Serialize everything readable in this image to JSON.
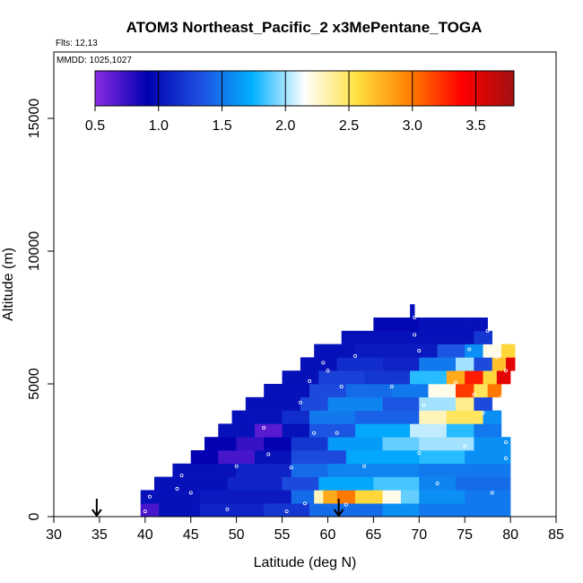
{
  "chart_data": {
    "type": "heatmap",
    "title": "ATOM3 Northeast_Pacific_2 x3MePentane_TOGA",
    "flights_note": "Flts: 12,13",
    "mmdd_note": "MMDD: 1025,1027",
    "xlabel": "Latitude (deg N)",
    "ylabel": "Altitude (m)",
    "xlim": [
      30,
      85
    ],
    "ylim": [
      0,
      17500
    ],
    "x_ticks": [
      30,
      35,
      40,
      45,
      50,
      55,
      60,
      65,
      70,
      75,
      80,
      85
    ],
    "y_ticks": [
      0,
      5000,
      10000,
      15000
    ],
    "colorbar": {
      "range": [
        0.5,
        3.8
      ],
      "ticks": [
        0.5,
        1.0,
        1.5,
        2.0,
        2.5,
        3.0,
        3.5
      ],
      "tick_labels": [
        "0.5",
        "1.0",
        "1.5",
        "2.0",
        "2.5",
        "3.0",
        "3.5"
      ],
      "colors": [
        "#8a2be2",
        "#0000b0",
        "#1e4fe0",
        "#00b0ff",
        "#ffffff",
        "#ffe040",
        "#ff8000",
        "#ff0000",
        "#a01010"
      ]
    },
    "bands": [
      {
        "alt_min": 0,
        "alt_max": 500,
        "segments": [
          [
            39.5,
            41.5,
            0.7
          ],
          [
            41.5,
            46,
            1.0
          ],
          [
            46,
            53,
            1.1
          ],
          [
            53,
            58,
            1.2
          ],
          [
            58,
            66,
            1.45
          ],
          [
            66,
            70,
            1.6
          ],
          [
            70,
            80,
            1.5
          ]
        ]
      },
      {
        "alt_min": 500,
        "alt_max": 1000,
        "segments": [
          [
            39.5,
            46,
            1.0
          ],
          [
            46,
            56,
            1.05
          ],
          [
            56,
            58.5,
            1.45
          ],
          [
            58.5,
            59.5,
            2.3
          ],
          [
            59.5,
            61,
            2.8
          ],
          [
            61,
            63,
            3.0
          ],
          [
            63,
            66,
            2.6
          ],
          [
            66,
            68,
            2.2
          ],
          [
            68,
            70,
            1.9
          ],
          [
            70,
            75,
            1.6
          ],
          [
            75,
            80,
            1.5
          ]
        ]
      },
      {
        "alt_min": 1000,
        "alt_max": 1500,
        "segments": [
          [
            41,
            49,
            1.0
          ],
          [
            49,
            55,
            1.1
          ],
          [
            55,
            59,
            1.3
          ],
          [
            59,
            65,
            1.7
          ],
          [
            65,
            70,
            1.85
          ],
          [
            70,
            74,
            1.55
          ],
          [
            74,
            80,
            1.45
          ]
        ]
      },
      {
        "alt_min": 1500,
        "alt_max": 2000,
        "segments": [
          [
            43,
            50,
            1.0
          ],
          [
            50,
            56,
            1.1
          ],
          [
            56,
            60,
            1.45
          ],
          [
            60,
            70,
            1.55
          ],
          [
            70,
            80,
            1.5
          ]
        ]
      },
      {
        "alt_min": 2000,
        "alt_max": 2500,
        "segments": [
          [
            45,
            48,
            0.9
          ],
          [
            48,
            52,
            0.7
          ],
          [
            52,
            56,
            1.0
          ],
          [
            56,
            62,
            1.3
          ],
          [
            62,
            70,
            1.7
          ],
          [
            70,
            75,
            1.8
          ],
          [
            75,
            80,
            1.6
          ]
        ]
      },
      {
        "alt_min": 2500,
        "alt_max": 3000,
        "segments": [
          [
            46.5,
            50,
            0.9
          ],
          [
            50,
            53,
            0.75
          ],
          [
            53,
            56,
            0.9
          ],
          [
            56,
            60,
            1.2
          ],
          [
            60,
            66,
            1.65
          ],
          [
            66,
            70,
            1.9
          ],
          [
            70,
            76,
            2.0
          ],
          [
            76,
            80,
            1.6
          ]
        ]
      },
      {
        "alt_min": 3000,
        "alt_max": 3500,
        "segments": [
          [
            48,
            52,
            1.0
          ],
          [
            52,
            55,
            0.65
          ],
          [
            55,
            58,
            1.0
          ],
          [
            58,
            63,
            1.35
          ],
          [
            63,
            69,
            1.7
          ],
          [
            69,
            73,
            2.05
          ],
          [
            73,
            76,
            1.8
          ],
          [
            76,
            79,
            1.5
          ]
        ]
      },
      {
        "alt_min": 3500,
        "alt_max": 4000,
        "segments": [
          [
            49.5,
            55,
            1.0
          ],
          [
            55,
            58,
            1.15
          ],
          [
            58,
            63,
            1.5
          ],
          [
            63,
            70,
            1.4
          ],
          [
            70,
            73,
            2.3
          ],
          [
            73,
            77,
            2.5
          ],
          [
            77,
            79,
            1.6
          ]
        ]
      },
      {
        "alt_min": 4000,
        "alt_max": 4500,
        "segments": [
          [
            51,
            57,
            1.0
          ],
          [
            57,
            60,
            1.3
          ],
          [
            60,
            66,
            1.55
          ],
          [
            66,
            70,
            1.35
          ],
          [
            70,
            74,
            2.0
          ],
          [
            74,
            76,
            2.4
          ],
          [
            76,
            78,
            1.3
          ]
        ]
      },
      {
        "alt_min": 4500,
        "alt_max": 5000,
        "segments": [
          [
            53,
            58,
            1.0
          ],
          [
            58,
            62,
            1.3
          ],
          [
            62,
            67,
            1.45
          ],
          [
            67,
            71,
            1.5
          ],
          [
            71,
            74,
            2.2
          ],
          [
            74,
            76,
            3.2
          ],
          [
            76,
            77.5,
            2.5
          ],
          [
            77.5,
            79,
            3.0
          ]
        ]
      },
      {
        "alt_min": 5000,
        "alt_max": 5500,
        "segments": [
          [
            55,
            59,
            1.0
          ],
          [
            59,
            64,
            1.25
          ],
          [
            64,
            69,
            1.2
          ],
          [
            69,
            73,
            1.8
          ],
          [
            73,
            75,
            2.8
          ],
          [
            75,
            77,
            3.3
          ],
          [
            77,
            78.5,
            2.6
          ],
          [
            78.5,
            80,
            3.5
          ]
        ]
      },
      {
        "alt_min": 5500,
        "alt_max": 6000,
        "segments": [
          [
            57,
            61,
            1.0
          ],
          [
            61,
            66,
            1.15
          ],
          [
            66,
            70,
            1.1
          ],
          [
            70,
            74,
            1.5
          ],
          [
            74,
            76,
            2.0
          ],
          [
            76,
            78,
            1.3
          ],
          [
            78,
            79.5,
            2.7
          ],
          [
            79.5,
            80.5,
            3.5
          ]
        ]
      },
      {
        "alt_min": 6000,
        "alt_max": 6500,
        "segments": [
          [
            58.5,
            63,
            1.0
          ],
          [
            63,
            68,
            1.05
          ],
          [
            68,
            72,
            1.05
          ],
          [
            72,
            75,
            1.35
          ],
          [
            75,
            77,
            1.6
          ],
          [
            77,
            79,
            2.2
          ],
          [
            79,
            80.5,
            2.6
          ]
        ]
      },
      {
        "alt_min": 6500,
        "alt_max": 7000,
        "segments": [
          [
            61.5,
            66,
            1.0
          ],
          [
            66,
            71,
            1.0
          ],
          [
            71,
            76,
            1.0
          ],
          [
            76,
            78,
            1.2
          ]
        ]
      },
      {
        "alt_min": 7000,
        "alt_max": 7500,
        "segments": [
          [
            65,
            70,
            0.95
          ],
          [
            70,
            75,
            1.0
          ],
          [
            75,
            77.5,
            1.0
          ]
        ]
      },
      {
        "alt_min": 7500,
        "alt_max": 8000,
        "segments": [
          [
            69,
            69.5,
            1.0
          ]
        ]
      }
    ],
    "sample_points": [
      [
        40,
        200
      ],
      [
        40.5,
        750
      ],
      [
        43.5,
        1050
      ],
      [
        44,
        1550
      ],
      [
        45,
        900
      ],
      [
        49,
        280
      ],
      [
        50,
        1900
      ],
      [
        53,
        3350
      ],
      [
        53.5,
        2350
      ],
      [
        55.5,
        200
      ],
      [
        56,
        1850
      ],
      [
        57,
        4300
      ],
      [
        57.5,
        500
      ],
      [
        58,
        5100
      ],
      [
        58.5,
        3150
      ],
      [
        59.5,
        5800
      ],
      [
        60,
        5500
      ],
      [
        61,
        3150
      ],
      [
        61.5,
        4900
      ],
      [
        62,
        450
      ],
      [
        63,
        6050
      ],
      [
        64,
        1900
      ],
      [
        67,
        4900
      ],
      [
        69.5,
        6850
      ],
      [
        69.5,
        7500
      ],
      [
        70,
        6250
      ],
      [
        70,
        2400
      ],
      [
        70.5,
        4200
      ],
      [
        72,
        1250
      ],
      [
        74,
        5050
      ],
      [
        75,
        2650
      ],
      [
        75.5,
        6300
      ],
      [
        76,
        4600
      ],
      [
        77,
        3900
      ],
      [
        77.5,
        7000
      ],
      [
        78,
        900
      ],
      [
        78.5,
        6000
      ],
      [
        79,
        4500
      ],
      [
        79.5,
        2800
      ],
      [
        79.5,
        5500
      ],
      [
        79.5,
        2200
      ]
    ],
    "arrows": [
      34.7,
      61.2
    ]
  }
}
